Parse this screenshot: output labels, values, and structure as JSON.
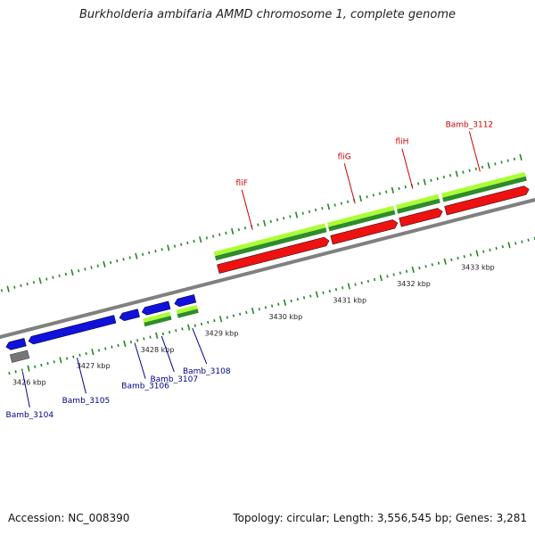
{
  "title": "Burkholderia ambifaria AMMD chromosome 1, complete genome",
  "footer": {
    "accession": "Accession: NC_008390",
    "summary": "Topology: circular; Length: 3,556,545 bp; Genes: 3,281"
  },
  "colors": {
    "backbone": "#808080",
    "tick": "#228822",
    "forward_cds": "#ee1111",
    "reverse_cds": "#1111dd",
    "gene_light": "#aaff33",
    "gene_dark": "#2e8b2e",
    "label_forward": "#cc0000",
    "label_reverse": "#00008b",
    "other_feature": "#777777"
  },
  "axis": {
    "start_kbp": 3425.7,
    "end_kbp": 3434.0,
    "tick_labels": [
      {
        "pos_kbp": 3426,
        "text": "3426 kbp"
      },
      {
        "pos_kbp": 3427,
        "text": "3427 kbp"
      },
      {
        "pos_kbp": 3428,
        "text": "3428 kbp"
      },
      {
        "pos_kbp": 3429,
        "text": "3429 kbp"
      },
      {
        "pos_kbp": 3430,
        "text": "3430 kbp"
      },
      {
        "pos_kbp": 3431,
        "text": "3431 kbp"
      },
      {
        "pos_kbp": 3432,
        "text": "3432 kbp"
      },
      {
        "pos_kbp": 3433,
        "text": "3433 kbp"
      }
    ]
  },
  "features": [
    {
      "strand": "reverse",
      "type": "cds",
      "start_kbp": 3425.75,
      "end_kbp": 3426.05
    },
    {
      "strand": "reverse",
      "type": "other",
      "start_kbp": 3425.78,
      "end_kbp": 3426.05
    },
    {
      "strand": "reverse",
      "type": "cds",
      "start_kbp": 3426.1,
      "end_kbp": 3427.45
    },
    {
      "strand": "reverse",
      "type": "cds",
      "start_kbp": 3427.52,
      "end_kbp": 3427.82
    },
    {
      "strand": "reverse",
      "type": "cds",
      "start_kbp": 3427.87,
      "end_kbp": 3428.3
    },
    {
      "strand": "reverse",
      "type": "gene",
      "start_kbp": 3427.86,
      "end_kbp": 3428.28
    },
    {
      "strand": "reverse",
      "type": "cds",
      "start_kbp": 3428.38,
      "end_kbp": 3428.7
    },
    {
      "strand": "reverse",
      "type": "gene",
      "start_kbp": 3428.38,
      "end_kbp": 3428.7
    },
    {
      "strand": "forward",
      "type": "cds",
      "start_kbp": 3429.15,
      "end_kbp": 3430.88
    },
    {
      "strand": "forward",
      "type": "gene",
      "start_kbp": 3429.15,
      "end_kbp": 3430.88
    },
    {
      "strand": "forward",
      "type": "cds",
      "start_kbp": 3430.92,
      "end_kbp": 3431.95
    },
    {
      "strand": "forward",
      "type": "gene",
      "start_kbp": 3430.92,
      "end_kbp": 3431.95
    },
    {
      "strand": "forward",
      "type": "cds",
      "start_kbp": 3431.99,
      "end_kbp": 3432.65
    },
    {
      "strand": "forward",
      "type": "gene",
      "start_kbp": 3431.99,
      "end_kbp": 3432.65
    },
    {
      "strand": "forward",
      "type": "cds",
      "start_kbp": 3432.7,
      "end_kbp": 3434.0
    },
    {
      "strand": "forward",
      "type": "gene",
      "start_kbp": 3432.7,
      "end_kbp": 3434.0
    }
  ],
  "gene_labels": [
    {
      "text": "Bamb_3104",
      "strand": "reverse",
      "pos_kbp": 3425.9
    },
    {
      "text": "Bamb_3105",
      "strand": "reverse",
      "pos_kbp": 3426.75
    },
    {
      "text": "Bamb_3106",
      "strand": "reverse",
      "pos_kbp": 3427.65
    },
    {
      "text": "Bamb_3107",
      "strand": "reverse",
      "pos_kbp": 3428.07
    },
    {
      "text": "Bamb_3108",
      "strand": "reverse",
      "pos_kbp": 3428.55
    },
    {
      "text": "fliF",
      "strand": "forward",
      "pos_kbp": 3429.8
    },
    {
      "text": "fliG",
      "strand": "forward",
      "pos_kbp": 3431.4
    },
    {
      "text": "fliH",
      "strand": "forward",
      "pos_kbp": 3432.3
    },
    {
      "text": "Bamb_3112",
      "strand": "forward",
      "pos_kbp": 3433.35
    }
  ]
}
